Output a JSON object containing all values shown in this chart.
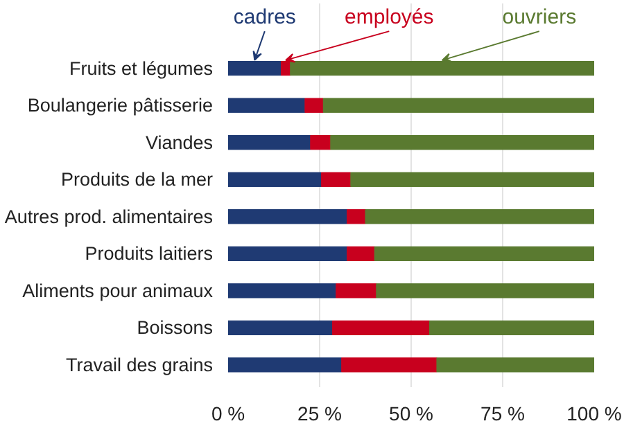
{
  "chart_data": {
    "type": "bar",
    "orientation": "horizontal",
    "stacked": true,
    "categories": [
      "Fruits et légumes",
      "Boulangerie pâtisserie",
      "Viandes",
      "Produits de la mer",
      "Autres prod. alimentaires",
      "Produits laitiers",
      "Aliments pour animaux",
      "Boissons",
      "Travail des grains"
    ],
    "series": [
      {
        "name": "cadres",
        "color": "#1f3a73",
        "values": [
          14.5,
          21,
          22.5,
          25.5,
          32.5,
          32.5,
          29.5,
          28.5,
          31
        ]
      },
      {
        "name": "employés",
        "color": "#c8001e",
        "values": [
          2.5,
          5,
          5.5,
          8,
          5,
          7.5,
          11,
          26.5,
          26
        ]
      },
      {
        "name": "ouvriers",
        "color": "#5a7a30",
        "values": [
          83,
          74,
          72,
          66.5,
          62.5,
          60,
          59.5,
          45,
          43
        ]
      }
    ],
    "xlim": [
      0,
      100
    ],
    "xticks": [
      {
        "value": 0,
        "label": "0 %"
      },
      {
        "value": 25,
        "label": "25 %"
      },
      {
        "value": 50,
        "label": "50 %"
      },
      {
        "value": 75,
        "label": "75 %"
      },
      {
        "value": 100,
        "label": "100 %"
      }
    ],
    "grid": "x",
    "legend": false
  }
}
